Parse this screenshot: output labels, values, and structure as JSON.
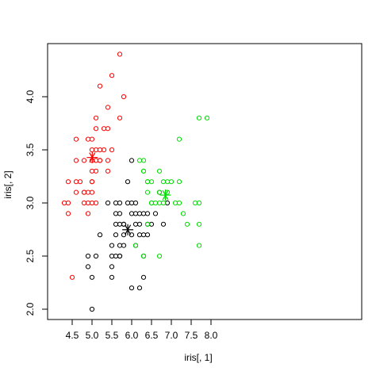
{
  "chart_data": {
    "type": "scatter",
    "title": "",
    "xlabel": "iris[, 1]",
    "ylabel": "iris[, 2]",
    "xlim": [
      4.3,
      7.9
    ],
    "ylim": [
      2.0,
      4.4
    ],
    "x_ticks": [
      4.5,
      5.0,
      5.5,
      6.0,
      6.5,
      7.0,
      7.5,
      8.0
    ],
    "x_tick_labels": [
      "4.5",
      "5.0",
      "5.5",
      "6.0",
      "6.5",
      "7.0",
      "7.5",
      "8.0"
    ],
    "y_ticks": [
      2.0,
      2.5,
      3.0,
      3.5,
      4.0
    ],
    "y_tick_labels": [
      "2.0",
      "2.5",
      "3.0",
      "3.5",
      "4.0"
    ],
    "grid": false,
    "series": [
      {
        "color": "#ff0000",
        "marker": "circle-open",
        "points": [
          [
            4.3,
            3.0
          ],
          [
            4.4,
            2.9
          ],
          [
            4.4,
            3.0
          ],
          [
            4.4,
            3.2
          ],
          [
            4.5,
            2.3
          ],
          [
            4.6,
            3.1
          ],
          [
            4.6,
            3.2
          ],
          [
            4.6,
            3.4
          ],
          [
            4.6,
            3.6
          ],
          [
            4.7,
            3.2
          ],
          [
            4.8,
            3.0
          ],
          [
            4.8,
            3.1
          ],
          [
            4.8,
            3.4
          ],
          [
            4.9,
            3.0
          ],
          [
            4.9,
            3.1
          ],
          [
            4.9,
            3.6
          ],
          [
            5.0,
            3.0
          ],
          [
            5.0,
            3.2
          ],
          [
            5.0,
            3.3
          ],
          [
            5.0,
            3.4
          ],
          [
            5.0,
            3.5
          ],
          [
            5.0,
            3.6
          ],
          [
            5.1,
            3.3
          ],
          [
            5.1,
            3.4
          ],
          [
            5.1,
            3.5
          ],
          [
            5.1,
            3.7
          ],
          [
            5.1,
            3.8
          ],
          [
            5.2,
            3.4
          ],
          [
            5.2,
            3.5
          ],
          [
            5.2,
            4.1
          ],
          [
            5.3,
            3.7
          ],
          [
            5.4,
            3.4
          ],
          [
            5.4,
            3.7
          ],
          [
            5.4,
            3.9
          ],
          [
            5.5,
            3.5
          ],
          [
            5.5,
            4.2
          ],
          [
            5.7,
            3.8
          ],
          [
            5.7,
            4.4
          ],
          [
            5.8,
            4.0
          ],
          [
            4.8,
            3.1
          ],
          [
            4.9,
            2.9
          ],
          [
            5.0,
            3.2
          ],
          [
            5.1,
            3.0
          ],
          [
            5.0,
            3.1
          ],
          [
            5.2,
            3.4
          ],
          [
            5.4,
            3.3
          ],
          [
            5.3,
            3.5
          ]
        ]
      },
      {
        "color": "#000000",
        "marker": "circle-open",
        "points": [
          [
            4.9,
            2.4
          ],
          [
            4.9,
            2.5
          ],
          [
            5.0,
            2.0
          ],
          [
            5.0,
            2.3
          ],
          [
            5.1,
            2.5
          ],
          [
            5.2,
            2.7
          ],
          [
            5.4,
            3.0
          ],
          [
            5.5,
            2.3
          ],
          [
            5.5,
            2.4
          ],
          [
            5.5,
            2.5
          ],
          [
            5.5,
            2.6
          ],
          [
            5.6,
            2.5
          ],
          [
            5.6,
            2.7
          ],
          [
            5.6,
            2.8
          ],
          [
            5.6,
            2.9
          ],
          [
            5.6,
            3.0
          ],
          [
            5.7,
            2.5
          ],
          [
            5.7,
            2.6
          ],
          [
            5.7,
            2.8
          ],
          [
            5.7,
            2.9
          ],
          [
            5.7,
            3.0
          ],
          [
            5.8,
            2.6
          ],
          [
            5.8,
            2.7
          ],
          [
            5.8,
            2.8
          ],
          [
            5.9,
            3.0
          ],
          [
            5.9,
            3.2
          ],
          [
            6.0,
            2.2
          ],
          [
            6.0,
            2.7
          ],
          [
            6.0,
            2.9
          ],
          [
            6.0,
            3.0
          ],
          [
            6.0,
            3.4
          ],
          [
            6.1,
            2.6
          ],
          [
            6.1,
            2.8
          ],
          [
            6.1,
            2.9
          ],
          [
            6.1,
            3.0
          ],
          [
            6.2,
            2.2
          ],
          [
            6.2,
            2.8
          ],
          [
            6.2,
            2.9
          ],
          [
            6.3,
            2.3
          ],
          [
            6.3,
            2.5
          ],
          [
            6.3,
            2.7
          ],
          [
            6.3,
            2.9
          ],
          [
            6.4,
            2.9
          ],
          [
            6.6,
            2.9
          ],
          [
            6.8,
            2.8
          ],
          [
            6.9,
            3.0
          ],
          [
            6.7,
            3.1
          ],
          [
            6.4,
            2.7
          ],
          [
            6.5,
            2.8
          ],
          [
            6.4,
            2.8
          ],
          [
            5.7,
            2.5
          ],
          [
            5.8,
            2.8
          ],
          [
            6.2,
            2.7
          ]
        ]
      },
      {
        "color": "#00dd00",
        "marker": "circle-open",
        "points": [
          [
            6.1,
            2.6
          ],
          [
            6.2,
            3.4
          ],
          [
            6.3,
            2.5
          ],
          [
            6.3,
            3.3
          ],
          [
            6.3,
            3.4
          ],
          [
            6.4,
            3.1
          ],
          [
            6.4,
            3.2
          ],
          [
            6.5,
            3.0
          ],
          [
            6.5,
            3.2
          ],
          [
            6.6,
            3.0
          ],
          [
            6.7,
            2.5
          ],
          [
            6.7,
            3.3
          ],
          [
            6.8,
            3.0
          ],
          [
            6.8,
            3.2
          ],
          [
            6.9,
            3.1
          ],
          [
            6.9,
            3.2
          ],
          [
            7.0,
            3.2
          ],
          [
            7.1,
            3.0
          ],
          [
            7.2,
            3.0
          ],
          [
            7.2,
            3.2
          ],
          [
            7.2,
            3.6
          ],
          [
            7.3,
            2.9
          ],
          [
            7.4,
            2.8
          ],
          [
            7.6,
            3.0
          ],
          [
            7.7,
            2.6
          ],
          [
            7.7,
            2.8
          ],
          [
            7.7,
            3.0
          ],
          [
            7.7,
            3.8
          ],
          [
            7.9,
            3.8
          ],
          [
            6.7,
            3.0
          ],
          [
            6.4,
            3.2
          ],
          [
            6.3,
            3.3
          ],
          [
            6.7,
            3.1
          ],
          [
            6.5,
            3.0
          ],
          [
            6.4,
            2.8
          ]
        ]
      }
    ],
    "centers": [
      {
        "color": "#ff0000",
        "x": 5.006,
        "y": 3.428
      },
      {
        "color": "#000000",
        "x": 5.902,
        "y": 2.748
      },
      {
        "color": "#00dd00",
        "x": 6.85,
        "y": 3.074
      }
    ]
  }
}
